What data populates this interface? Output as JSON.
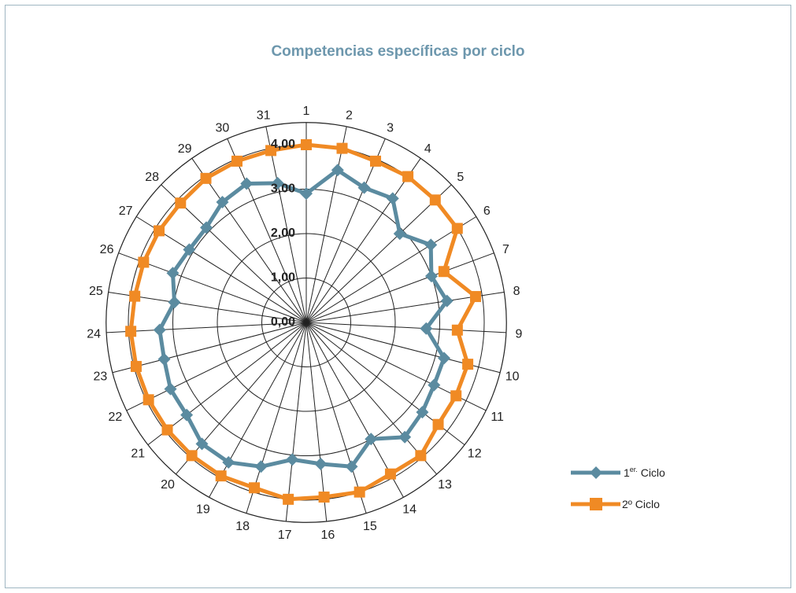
{
  "chart_data": {
    "type": "radar",
    "title": "Competencias específicas por ciclo",
    "categories": [
      "1",
      "2",
      "3",
      "4",
      "5",
      "6",
      "7",
      "8",
      "9",
      "10",
      "11",
      "12",
      "13",
      "14",
      "15",
      "16",
      "17",
      "18",
      "19",
      "20",
      "21",
      "22",
      "23",
      "24",
      "25",
      "26",
      "27",
      "28",
      "29",
      "30",
      "31"
    ],
    "rlim": [
      0,
      4
    ],
    "ticks": [
      "0,00",
      "1,00",
      "2,00",
      "3,00",
      "4,00"
    ],
    "grid": true,
    "legend_position": "right",
    "series": [
      {
        "name": "1er. Ciclo",
        "color": "#5b8ba0",
        "marker": "diamond",
        "values": [
          2.9,
          3.5,
          3.3,
          3.4,
          2.9,
          3.3,
          3.0,
          3.2,
          2.7,
          3.2,
          3.2,
          3.3,
          3.4,
          3.0,
          3.4,
          3.2,
          3.1,
          3.4,
          3.6,
          3.6,
          3.4,
          3.4,
          3.3,
          3.3,
          3.0,
          3.2,
          3.1,
          3.1,
          3.3,
          3.4,
          3.2
        ]
      },
      {
        "name": "2º Ciclo",
        "color": "#f08a24",
        "marker": "square",
        "values": [
          4.0,
          4.0,
          3.95,
          4.0,
          4.0,
          4.0,
          3.3,
          3.85,
          3.4,
          3.75,
          3.75,
          3.75,
          3.95,
          3.9,
          4.0,
          3.95,
          4.0,
          3.9,
          3.95,
          3.95,
          3.95,
          3.95,
          3.95,
          3.95,
          3.9,
          3.9,
          3.9,
          3.9,
          3.95,
          3.95,
          3.95
        ]
      }
    ],
    "legend": {
      "series1_main": "1",
      "series1_sup": "er.",
      "series1_rest": " Ciclo",
      "series2": "2º Ciclo"
    }
  }
}
